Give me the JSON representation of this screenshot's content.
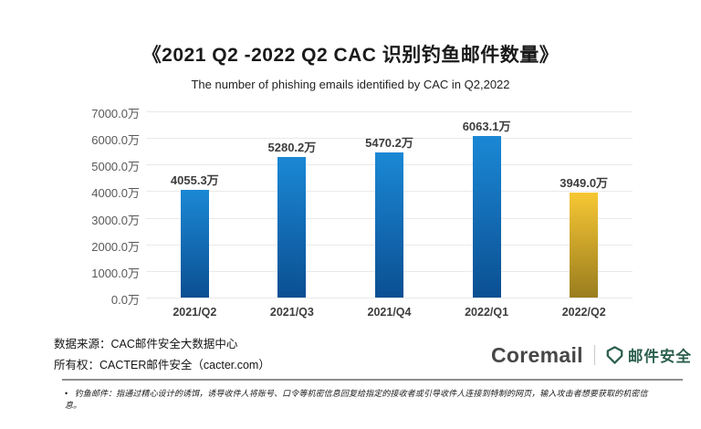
{
  "header": {
    "title": "《2021 Q2 -2022 Q2 CAC 识别钓鱼邮件数量》",
    "subtitle": "The number of phishing emails identified by CAC in Q2,2022"
  },
  "chart_data": {
    "type": "bar",
    "title": "《2021 Q2 -2022 Q2 CAC 识别钓鱼邮件数量》",
    "subtitle": "The number of phishing emails identified by CAC in Q2,2022",
    "categories": [
      "2021/Q2",
      "2021/Q3",
      "2021/Q4",
      "2022/Q1",
      "2022/Q2"
    ],
    "values": [
      4055.3,
      5280.2,
      5470.2,
      6063.1,
      3949.0
    ],
    "value_labels": [
      "4055.3万",
      "5280.2万",
      "5470.2万",
      "6063.1万",
      "3949.0万"
    ],
    "unit": "万",
    "xlabel": "",
    "ylabel": "",
    "ylim": [
      0,
      7000
    ],
    "ytick_step": 1000,
    "ytick_labels_top_to_bottom": [
      "7000.0万",
      "6000.0万",
      "5000.0万",
      "4000.0万",
      "3000.0万",
      "2000.0万",
      "1000.0万",
      "0.0万"
    ],
    "grid": true,
    "legend": "none",
    "bar_styles": [
      "blue",
      "blue",
      "blue",
      "blue",
      "gold"
    ],
    "colors": {
      "blue_top": "#1b88d5",
      "blue_bottom": "#0b4f92",
      "gold_top": "#f7c734",
      "gold_bottom": "#9a7d1e",
      "value_label": "#3d3d3d",
      "axis_label": "#595959",
      "gridline": "#e9e9e9"
    }
  },
  "footer": {
    "source_line": "数据来源：CAC邮件安全大数据中心",
    "ownership_line": "所有权：CACTER邮件安全（cacter.com）",
    "logo": {
      "brand": "Coremail",
      "product": "邮件安全",
      "brand_color": "#474747",
      "green": "#2c5f4e"
    }
  },
  "disclaimer": {
    "bullet": "•",
    "text": "钓鱼邮件：指通过精心设计的诱饵，诱导收件人将账号、口令等机密信息回复给指定的接收者或引导收件人连接到特制的网页，输入攻击者想要获取的机密信息。"
  }
}
